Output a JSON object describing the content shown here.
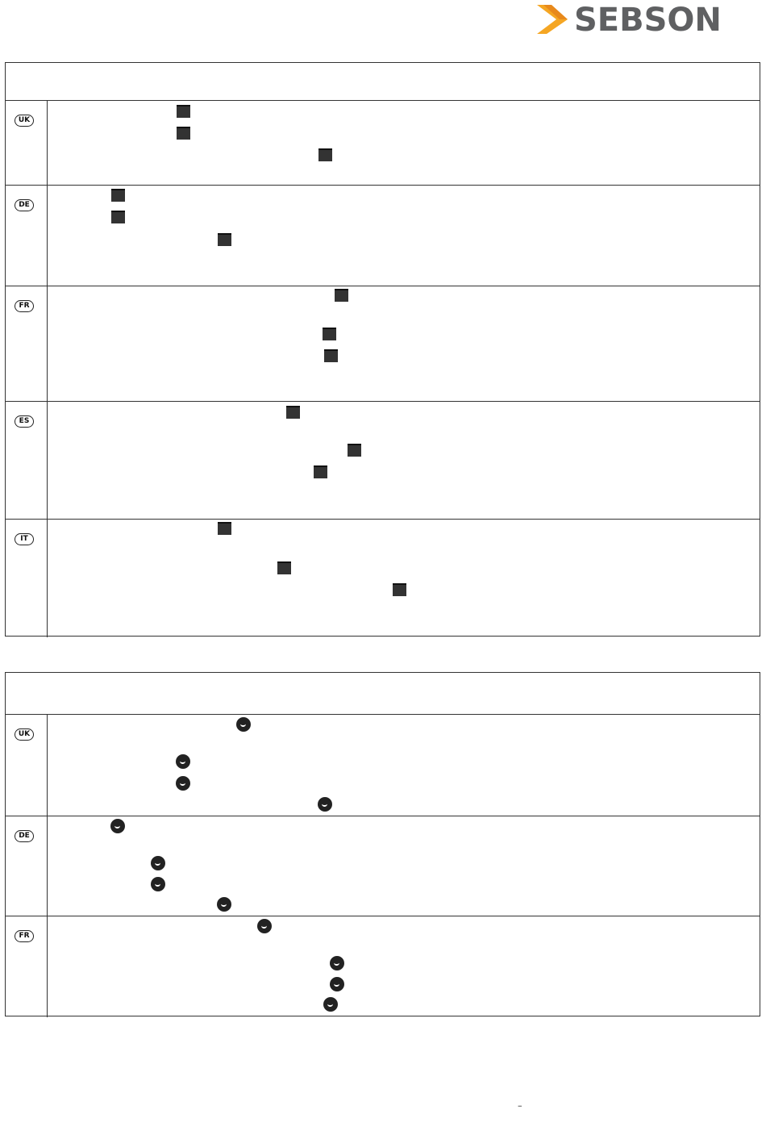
{
  "header": {
    "logo": "SEBSON"
  },
  "tables": [
    {
      "rows": [
        {
          "lang": "UK"
        },
        {
          "lang": "DE"
        },
        {
          "lang": "FR"
        },
        {
          "lang": "ES"
        },
        {
          "lang": "IT"
        }
      ]
    },
    {
      "rows": [
        {
          "lang": "UK"
        },
        {
          "lang": "DE"
        },
        {
          "lang": "FR"
        }
      ]
    }
  ],
  "footer": {
    "mark": "–"
  }
}
